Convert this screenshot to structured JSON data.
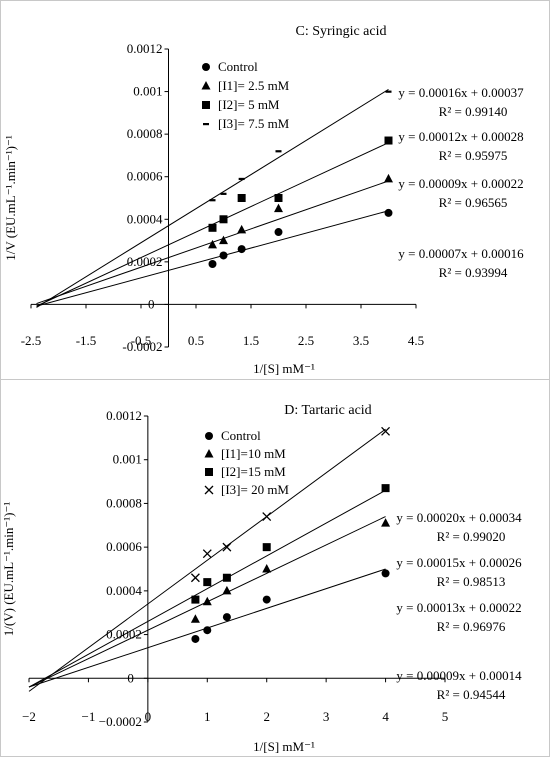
{
  "chart_data": [
    {
      "type": "scatter",
      "title": "C: Syringic acid",
      "xlabel": "1/[S] mM⁻¹",
      "ylabel": "1/V (EU.mL⁻¹.min⁻¹)⁻¹",
      "xlim": [
        -2.5,
        4.5
      ],
      "ylim": [
        -0.0002,
        0.0012
      ],
      "xticks": [
        -2.5,
        -1.5,
        -0.5,
        0.5,
        1.5,
        2.5,
        3.5,
        4.5
      ],
      "xtick_labels": [
        "-2.5",
        "-1.5",
        "-0.5",
        "0.5",
        "1.5",
        "2.5",
        "3.5",
        "4.5"
      ],
      "yticks": [
        -0.0002,
        0,
        0.0002,
        0.0004,
        0.0006,
        0.0008,
        0.001,
        0.0012
      ],
      "ytick_labels": [
        "-0.0002",
        "0",
        "0.0002",
        "0.0004",
        "0.0006",
        "0.0008",
        "0.001",
        "0.0012"
      ],
      "grid": false,
      "legend_position": "top-left",
      "series": [
        {
          "name": "Control",
          "marker": "circle",
          "x": [
            0.8,
            1.0,
            1.33,
            2.0,
            4.0
          ],
          "y": [
            0.00019,
            0.00023,
            0.00026,
            0.00034,
            0.00043
          ],
          "fit": {
            "slope": 7e-05,
            "intercept": 0.00016
          },
          "equation": "y = 0.00007x + 0.00016",
          "r2": "R² = 0.93994"
        },
        {
          "name": "[I1]= 2.5 mM",
          "marker": "triangle",
          "x": [
            0.8,
            1.0,
            1.33,
            2.0,
            4.0
          ],
          "y": [
            0.00028,
            0.0003,
            0.00035,
            0.00045,
            0.00059
          ],
          "fit": {
            "slope": 9e-05,
            "intercept": 0.00022
          },
          "equation": "y = 0.00009x + 0.00022",
          "r2": "R² = 0.96565"
        },
        {
          "name": "[I2]= 5 mM",
          "marker": "square",
          "x": [
            0.8,
            1.0,
            1.33,
            2.0,
            4.0
          ],
          "y": [
            0.00036,
            0.0004,
            0.0005,
            0.0005,
            0.00077
          ],
          "fit": {
            "slope": 0.00012,
            "intercept": 0.00028
          },
          "equation": "y = 0.00012x + 0.00028",
          "r2": "R² = 0.95975"
        },
        {
          "name": "[I3]= 7.5 mM",
          "marker": "dash",
          "x": [
            0.8,
            1.0,
            1.33,
            2.0,
            4.0
          ],
          "y": [
            0.00049,
            0.00052,
            0.00059,
            0.00072,
            0.001
          ],
          "fit": {
            "slope": 0.00016,
            "intercept": 0.00037
          },
          "equation": "y = 0.00016x + 0.00037",
          "r2": "R² = 0.99140"
        }
      ],
      "fit_x_range": [
        -2.4,
        4.0
      ]
    },
    {
      "type": "scatter",
      "title": "D: Tartaric acid",
      "xlabel": "1/[S] mM⁻¹",
      "ylabel": "1/(V) (EU.mL⁻¹.min⁻¹)⁻¹",
      "xlim": [
        -2,
        5
      ],
      "ylim": [
        -0.0002,
        0.0012
      ],
      "xticks": [
        -2,
        -1,
        0,
        1,
        2,
        3,
        4,
        5
      ],
      "xtick_labels": [
        "−2",
        "−1",
        "0",
        "1",
        "2",
        "3",
        "4",
        "5"
      ],
      "yticks": [
        -0.0002,
        0,
        0.0002,
        0.0004,
        0.0006,
        0.0008,
        0.001,
        0.0012
      ],
      "ytick_labels": [
        "−0.0002",
        "0",
        "0.0002",
        "0.0004",
        "0.0006",
        "0.0008",
        "0.001",
        "0.0012"
      ],
      "grid": false,
      "legend_position": "top-left",
      "series": [
        {
          "name": "Control",
          "marker": "circle",
          "x": [
            0.8,
            1.0,
            1.33,
            2.0,
            4.0
          ],
          "y": [
            0.00018,
            0.00022,
            0.00028,
            0.00036,
            0.00048
          ],
          "fit": {
            "slope": 9e-05,
            "intercept": 0.00014
          },
          "equation": "y = 0.00009x + 0.00014",
          "r2": "R² = 0.94544"
        },
        {
          "name": "[I1]=10 mM",
          "marker": "triangle",
          "x": [
            0.8,
            1.0,
            1.33,
            2.0,
            4.0
          ],
          "y": [
            0.00027,
            0.00035,
            0.0004,
            0.0005,
            0.00071
          ],
          "fit": {
            "slope": 0.00013,
            "intercept": 0.00022
          },
          "equation": "y = 0.00013x + 0.00022",
          "r2": "R² = 0.96976"
        },
        {
          "name": "[I2]=15 mM",
          "marker": "square",
          "x": [
            0.8,
            1.0,
            1.33,
            2.0,
            4.0
          ],
          "y": [
            0.00036,
            0.00044,
            0.00046,
            0.0006,
            0.00087
          ],
          "fit": {
            "slope": 0.00015,
            "intercept": 0.00026
          },
          "equation": "y = 0.00015x + 0.00026",
          "r2": "R² = 0.98513"
        },
        {
          "name": "[I3]= 20 mM",
          "marker": "cross",
          "x": [
            0.8,
            1.0,
            1.33,
            2.0,
            4.0
          ],
          "y": [
            0.00046,
            0.00057,
            0.0006,
            0.00074,
            0.00113
          ],
          "fit": {
            "slope": 0.0002,
            "intercept": 0.00034
          },
          "equation": "y = 0.00020x + 0.00034",
          "r2": "R² = 0.99020"
        }
      ],
      "fit_x_range": [
        -2.0,
        4.0
      ]
    }
  ]
}
